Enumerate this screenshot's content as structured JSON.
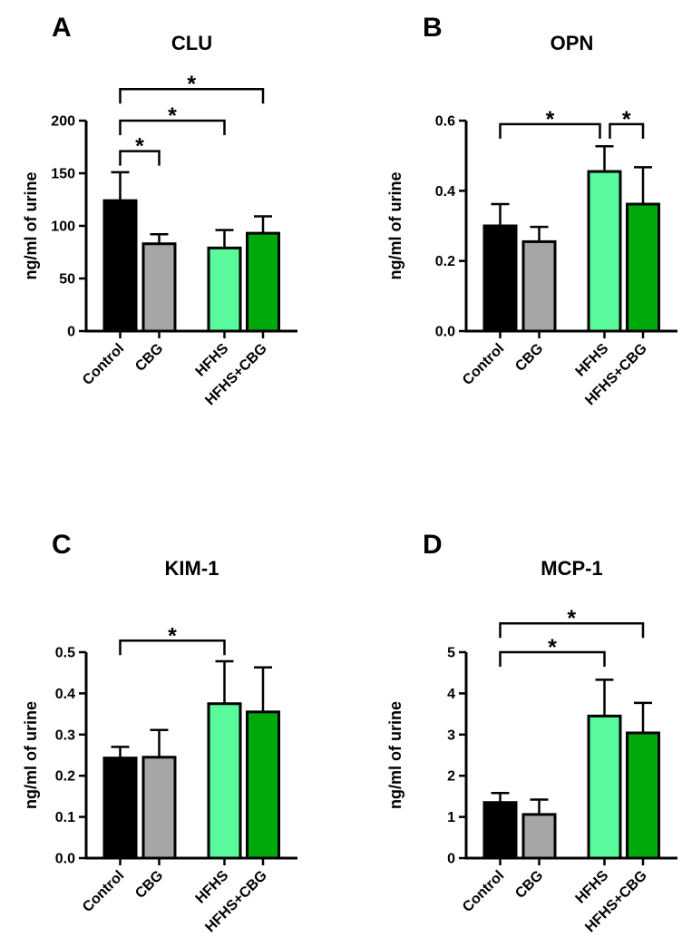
{
  "figure": {
    "kind": "four-panel bar figure with SD error bars and significance brackets",
    "shared_ylabel": "ng/ml of urine",
    "group_colors": {
      "Control": "#000000",
      "CBG": "#A6A6A9",
      "HFHS": "#59FA9B",
      "HFHS+CBG": "#00A90B"
    },
    "significance_symbol": "*"
  },
  "chart_data": [
    {
      "type": "bar",
      "panel_letter": "A",
      "title": "CLU",
      "ylabel": "ng/ml of urine",
      "categories": [
        "Control",
        "CBG",
        "HFHS",
        "HFHS+CBG"
      ],
      "values": [
        124,
        83,
        79,
        93
      ],
      "errors_plus": [
        27,
        9,
        17,
        16
      ],
      "bar_colors": [
        "#000000",
        "#A6A6A9",
        "#59FA9B",
        "#00A90B"
      ],
      "ylim": [
        0,
        200
      ],
      "yticks": [
        0,
        50,
        100,
        150,
        200
      ],
      "ytick_decimals": 0,
      "grid": false,
      "significance": [
        {
          "from": 0,
          "to": 1,
          "level": 171,
          "label": "*"
        },
        {
          "from": 0,
          "to": 2,
          "level": 200,
          "label": "*"
        },
        {
          "from": 0,
          "to": 3,
          "level": 230,
          "label": "*"
        }
      ]
    },
    {
      "type": "bar",
      "panel_letter": "B",
      "title": "OPN",
      "ylabel": "ng/ml of urine",
      "categories": [
        "Control",
        "CBG",
        "HFHS",
        "HFHS+CBG"
      ],
      "values": [
        0.3,
        0.255,
        0.455,
        0.362
      ],
      "errors_plus": [
        0.062,
        0.042,
        0.072,
        0.105
      ],
      "bar_colors": [
        "#000000",
        "#A6A6A9",
        "#59FA9B",
        "#00A90B"
      ],
      "ylim": [
        0,
        0.6
      ],
      "yticks": [
        0,
        0.2,
        0.4,
        0.6
      ],
      "ytick_decimals": 1,
      "grid": false,
      "significance": [
        {
          "from": 0,
          "to": 2,
          "level": 0.59,
          "label": "*",
          "x2_offset": -5
        },
        {
          "from": 2,
          "to": 3,
          "level": 0.59,
          "label": "*",
          "x1_offset": 6
        }
      ]
    },
    {
      "type": "bar",
      "panel_letter": "C",
      "title": "KIM-1",
      "ylabel": "ng/ml of urine",
      "categories": [
        "Control",
        "CBG",
        "HFHS",
        "HFHS+CBG"
      ],
      "values": [
        0.243,
        0.245,
        0.375,
        0.355
      ],
      "errors_plus": [
        0.027,
        0.066,
        0.103,
        0.108
      ],
      "bar_colors": [
        "#000000",
        "#A6A6A9",
        "#59FA9B",
        "#00A90B"
      ],
      "ylim": [
        0,
        0.5
      ],
      "yticks": [
        0,
        0.1,
        0.2,
        0.3,
        0.4,
        0.5
      ],
      "ytick_decimals": 1,
      "grid": false,
      "significance": [
        {
          "from": 0,
          "to": 2,
          "level": 0.528,
          "label": "*"
        }
      ]
    },
    {
      "type": "bar",
      "panel_letter": "D",
      "title": "MCP-1",
      "ylabel": "ng/ml of urine",
      "categories": [
        "Control",
        "CBG",
        "HFHS",
        "HFHS+CBG"
      ],
      "values": [
        1.35,
        1.06,
        3.45,
        3.04
      ],
      "errors_plus": [
        0.23,
        0.36,
        0.88,
        0.73
      ],
      "bar_colors": [
        "#000000",
        "#A6A6A9",
        "#59FA9B",
        "#00A90B"
      ],
      "ylim": [
        0,
        5
      ],
      "yticks": [
        0,
        1,
        2,
        3,
        4,
        5
      ],
      "ytick_decimals": 0,
      "grid": false,
      "significance": [
        {
          "from": 0,
          "to": 2,
          "level": 5.0,
          "label": "*"
        },
        {
          "from": 0,
          "to": 3,
          "level": 5.7,
          "label": "*"
        }
      ]
    }
  ]
}
